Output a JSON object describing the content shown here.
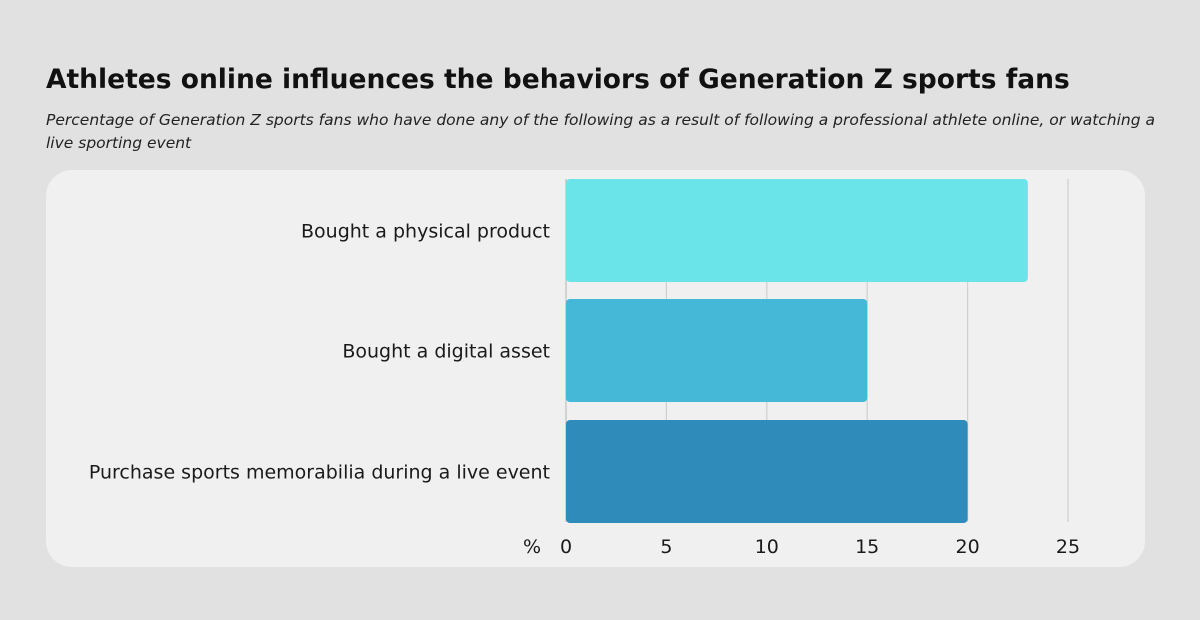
{
  "header": {
    "title": "Athletes online influences the behaviors of Generation Z sports fans",
    "subtitle": "Percentage of Generation Z sports fans who have done any of the following as a result of following a professional athlete online, or watching a live sporting event"
  },
  "chart_data": {
    "type": "bar",
    "orientation": "horizontal",
    "categories": [
      "Bought a physical product",
      "Bought a digital asset",
      "Purchase sports memorabilia during a live event"
    ],
    "values": [
      23,
      15,
      20
    ],
    "colors": [
      "#6ae4e8",
      "#44b8d6",
      "#2e8bba"
    ],
    "xlabel": "%",
    "xlim": [
      0,
      25
    ],
    "xticks": [
      0,
      5,
      10,
      15,
      20,
      25
    ],
    "grid": "vertical",
    "legend": "none"
  }
}
